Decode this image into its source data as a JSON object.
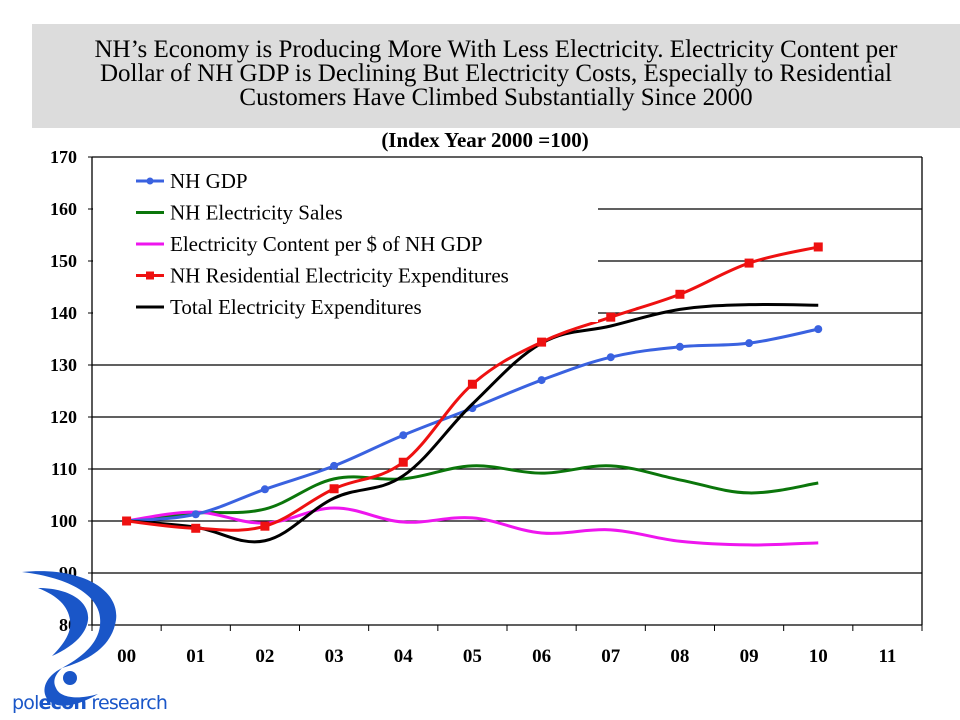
{
  "header": {
    "title_lines": [
      "NH’s Economy is Producing More With Less Electricity.  Electricity Content per",
      "Dollar of NH GDP is Declining But Electricity Costs, Especially to Residential",
      "Customers Have Climbed Substantially Since 2000"
    ]
  },
  "logo": {
    "icon": "polecon-swirl-logo",
    "text_part1": "pol",
    "text_part2": "econ",
    "text_part3": " research",
    "color": "#1a56c8"
  },
  "chart_data": {
    "type": "line",
    "title": "NH’s Economy is Producing More With Less Electricity.  Electricity Content per Dollar of NH GDP is Declining But Electricity Costs, Especially to Residential Customers Have Climbed Substantially Since 2000",
    "subtitle": "(Index Year 2000 =100)",
    "xlabel": "",
    "ylabel": "",
    "categories": [
      "00",
      "01",
      "02",
      "03",
      "04",
      "05",
      "06",
      "07",
      "08",
      "09",
      "10",
      "11"
    ],
    "ylim": [
      80,
      170
    ],
    "yticks": [
      80,
      90,
      100,
      110,
      120,
      130,
      140,
      150,
      160,
      170
    ],
    "grid": "horizontal",
    "legend_position": "top-left",
    "series": [
      {
        "name": "NH GDP",
        "color": "#3a62e0",
        "marker": "circle",
        "values": [
          100,
          101.3,
          106.1,
          110.6,
          116.5,
          121.7,
          127.1,
          131.5,
          133.5,
          134.2,
          136.9,
          null
        ]
      },
      {
        "name": "NH Electricity Sales",
        "color": "#0b760b",
        "marker": "none",
        "values": [
          100,
          101.5,
          102.3,
          108.1,
          108.1,
          110.6,
          109.2,
          110.6,
          107.9,
          105.4,
          107.3,
          null
        ]
      },
      {
        "name": "Electricity Content per $ of NH GDP",
        "color": "#ee16ee",
        "marker": "none",
        "values": [
          100,
          101.7,
          99.6,
          102.5,
          99.8,
          100.6,
          97.7,
          98.3,
          96.1,
          95.4,
          95.8,
          null
        ]
      },
      {
        "name": "NH Residential Electricity Expenditures",
        "color": "#ee1111",
        "marker": "square",
        "values": [
          100,
          98.6,
          99.0,
          106.2,
          111.3,
          126.3,
          134.4,
          139.2,
          143.6,
          149.6,
          152.7,
          null
        ]
      },
      {
        "name": "Total Electricity Expenditures",
        "color": "#000000",
        "marker": "none",
        "values": [
          100,
          98.8,
          96.2,
          104.4,
          108.7,
          122.5,
          134.2,
          137.5,
          140.7,
          141.6,
          141.5,
          null
        ]
      }
    ]
  }
}
